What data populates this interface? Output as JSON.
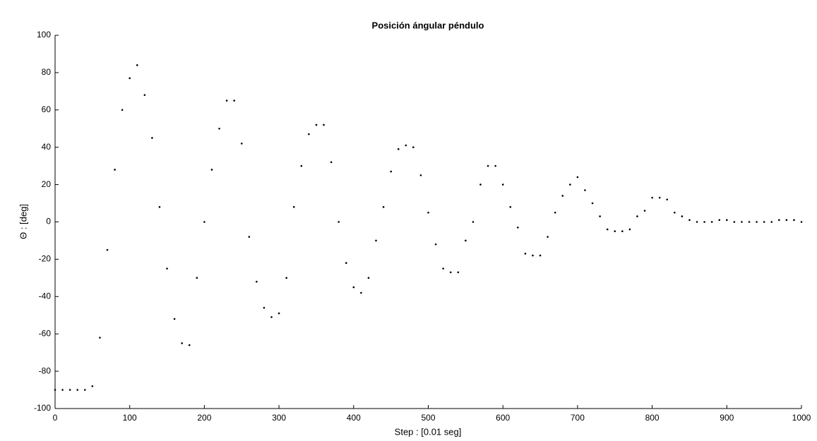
{
  "chart_data": {
    "type": "scatter",
    "title": "Posición ángular péndulo",
    "x_label": "Step : [0.01 seg]",
    "y_label": "Θ : [deg]",
    "color": "#000000",
    "grid": false,
    "xlim": [
      0,
      1000
    ],
    "xticks": [
      0,
      100,
      200,
      300,
      400,
      500,
      600,
      700,
      800,
      900,
      1000
    ],
    "ylim": [
      -100,
      100
    ],
    "yticks": [
      -100,
      -80,
      -60,
      -40,
      -20,
      0,
      20,
      40,
      60,
      80,
      100
    ],
    "x": [
      0,
      10,
      20,
      30,
      40,
      50,
      60,
      70,
      80,
      90,
      100,
      110,
      120,
      130,
      140,
      150,
      160,
      170,
      180,
      190,
      200,
      210,
      220,
      230,
      240,
      250,
      260,
      270,
      280,
      290,
      300,
      310,
      320,
      330,
      340,
      350,
      360,
      370,
      380,
      390,
      400,
      410,
      420,
      430,
      440,
      450,
      460,
      470,
      480,
      490,
      500,
      510,
      520,
      530,
      540,
      550,
      560,
      570,
      580,
      590,
      600,
      610,
      620,
      630,
      640,
      650,
      660,
      670,
      680,
      690,
      700,
      710,
      720,
      730,
      740,
      750,
      760,
      770,
      780,
      790,
      800,
      810,
      820,
      830,
      840,
      850,
      860,
      870,
      880,
      890,
      900,
      910,
      920,
      930,
      940,
      950,
      960,
      970,
      980,
      990,
      1000
    ],
    "values": [
      -90,
      -90,
      -90,
      -90,
      -90,
      -88,
      -62,
      -15,
      28,
      60,
      77,
      84,
      68,
      45,
      8,
      -25,
      -52,
      -65,
      -66,
      -30,
      0,
      28,
      50,
      65,
      65,
      42,
      -8,
      -32,
      -46,
      -51,
      -49,
      -30,
      8,
      30,
      47,
      52,
      52,
      32,
      0,
      -22,
      -35,
      -38,
      -30,
      -10,
      8,
      27,
      39,
      41,
      40,
      25,
      5,
      -12,
      -25,
      -27,
      -27,
      -10,
      0,
      20,
      30,
      30,
      20,
      8,
      -3,
      -17,
      -18,
      -18,
      -8,
      5,
      14,
      20,
      24,
      17,
      10,
      3,
      -4,
      -5,
      -5,
      -4,
      3,
      6,
      13,
      13,
      12,
      5,
      3,
      1,
      0,
      0,
      0,
      1,
      1,
      0,
      0,
      0,
      0,
      0,
      0,
      1,
      1,
      1,
      0
    ]
  }
}
